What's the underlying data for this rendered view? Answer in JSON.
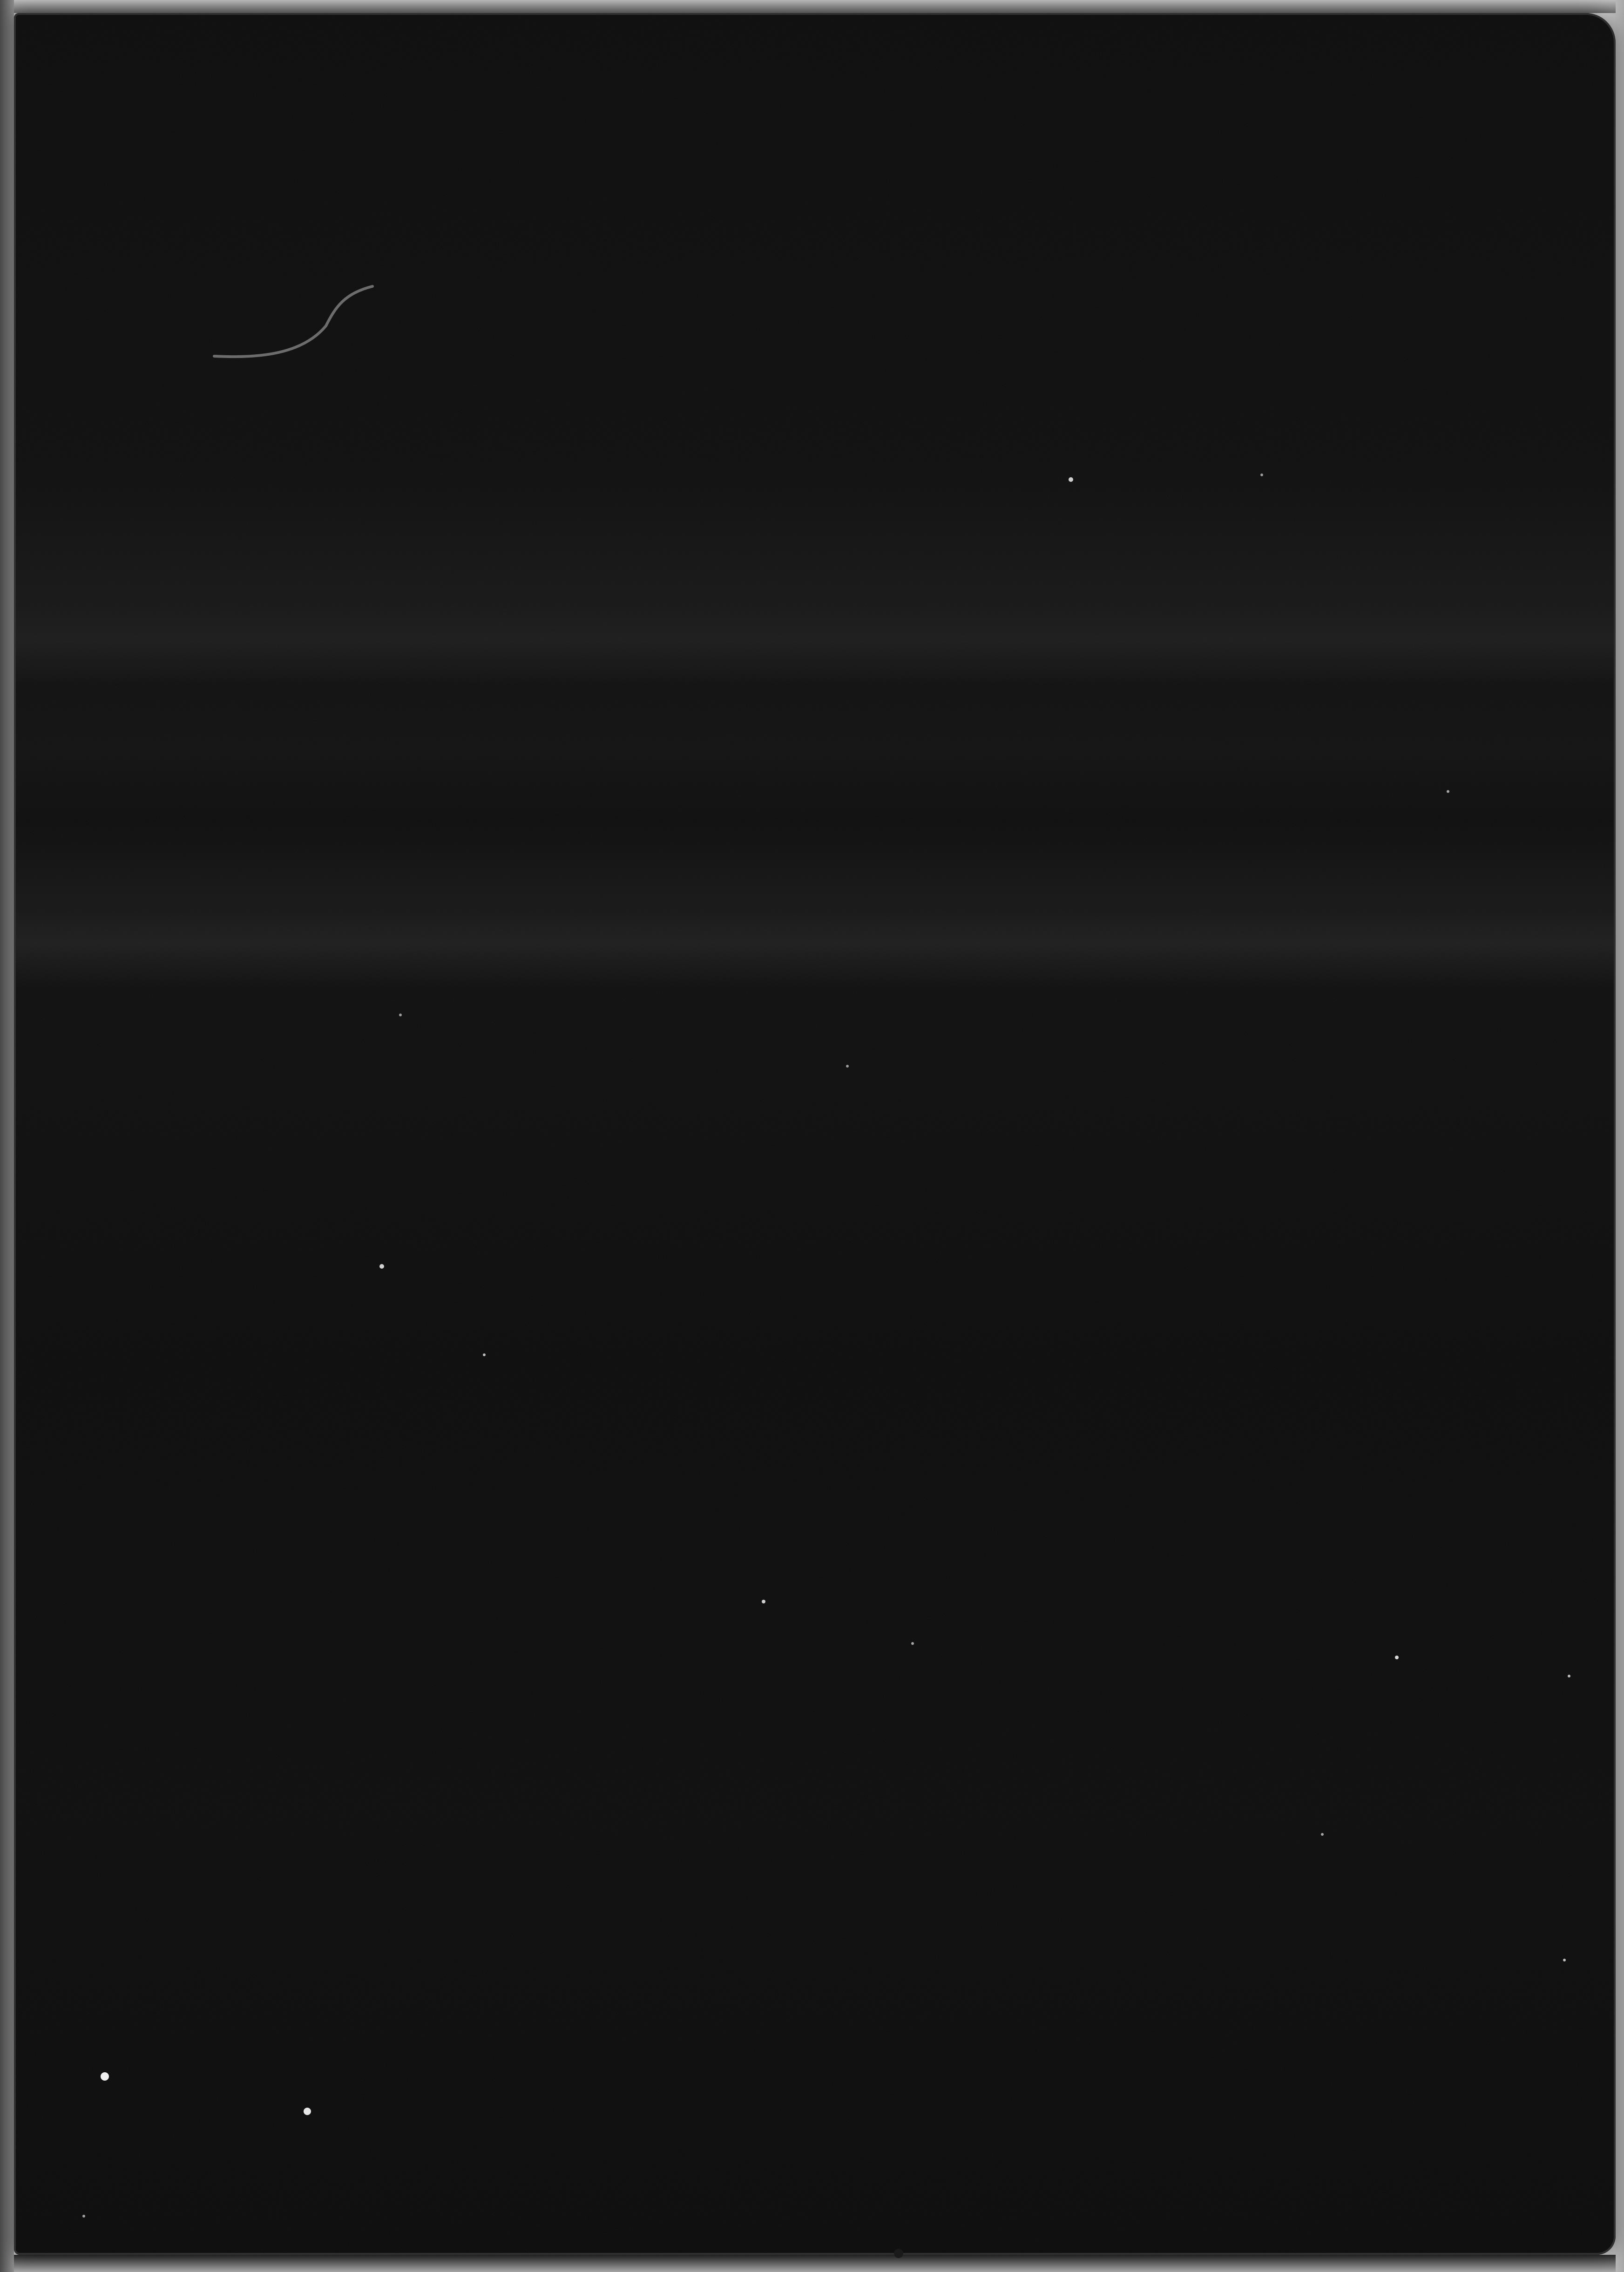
{
  "image": {
    "description_visible_text": "",
    "colors": {
      "sheet": "#0c0c0d",
      "surround": "#cfcfcf",
      "band": "#1b1b1c",
      "speck": "#e8e8e8"
    }
  }
}
